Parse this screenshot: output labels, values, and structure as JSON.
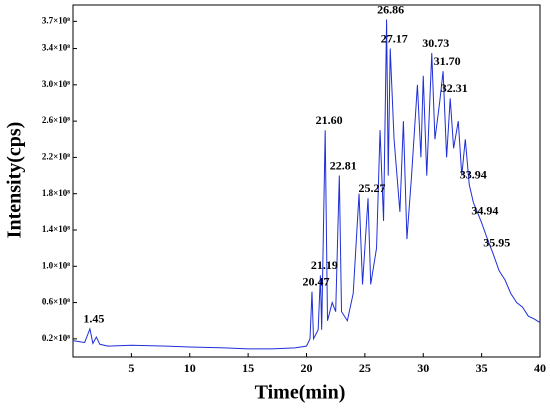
{
  "chart_data": {
    "type": "line",
    "xlabel": "Time(min)",
    "ylabel": "Intensity(cps)",
    "color": "#1f2fd6",
    "x": [
      0,
      0.5,
      1.0,
      1.45,
      1.7,
      2.0,
      2.3,
      3,
      5,
      8,
      10,
      13,
      15,
      17,
      19,
      20,
      20.3,
      20.47,
      20.6,
      21.0,
      21.19,
      21.3,
      21.6,
      21.8,
      22.2,
      22.5,
      22.81,
      23.0,
      23.5,
      24.0,
      24.5,
      24.8,
      25.27,
      25.5,
      26.0,
      26.3,
      26.6,
      26.86,
      27.0,
      27.17,
      27.5,
      28.0,
      28.3,
      28.6,
      29.0,
      29.5,
      29.8,
      30.0,
      30.3,
      30.73,
      31.0,
      31.4,
      31.7,
      32.0,
      32.31,
      32.6,
      33.0,
      33.3,
      33.6,
      33.94,
      34.3,
      34.94,
      35.5,
      35.95,
      36.5,
      37.0,
      37.5,
      38.0,
      38.5,
      39.0,
      39.5,
      40.0
    ],
    "values": [
      18000000,
      17000000,
      16000000,
      31000000,
      15000000,
      22000000,
      14000000,
      12000000,
      13000000,
      12000000,
      11000000,
      10000000,
      9000000,
      9000000,
      10000000,
      12000000,
      20000000,
      72000000,
      20000000,
      30000000,
      90000000,
      30000000,
      250000000,
      40000000,
      60000000,
      50000000,
      200000000,
      50000000,
      40000000,
      70000000,
      180000000,
      80000000,
      175000000,
      80000000,
      120000000,
      250000000,
      150000000,
      372000000,
      200000000,
      340000000,
      240000000,
      160000000,
      260000000,
      130000000,
      200000000,
      300000000,
      220000000,
      310000000,
      200000000,
      335000000,
      240000000,
      280000000,
      315000000,
      220000000,
      285000000,
      230000000,
      260000000,
      200000000,
      240000000,
      190000000,
      170000000,
      150000000,
      130000000,
      115000000,
      95000000,
      85000000,
      70000000,
      60000000,
      55000000,
      45000000,
      42000000,
      38000000
    ],
    "xlim": [
      0,
      40
    ],
    "xticks": [
      5,
      10,
      15,
      20,
      25,
      30,
      35,
      40
    ],
    "ylim": [
      0,
      388000000
    ],
    "yticks": [
      {
        "value": 20000000,
        "label": "0.2×10⁸"
      },
      {
        "value": 60000000,
        "label": "0.6×10⁸"
      },
      {
        "value": 100000000,
        "label": "1.0×10⁸"
      },
      {
        "value": 140000000,
        "label": "1.4×10⁸"
      },
      {
        "value": 180000000,
        "label": "1.8×10⁸"
      },
      {
        "value": 220000000,
        "label": "2.2×10⁸"
      },
      {
        "value": 260000000,
        "label": "2.6×10⁸"
      },
      {
        "value": 300000000,
        "label": "3.0×10⁸"
      },
      {
        "value": 340000000,
        "label": "3.4×10⁸"
      },
      {
        "value": 370000000,
        "label": "3.7×10⁸"
      }
    ],
    "annotations": [
      {
        "text": "1.45",
        "x": 1.45,
        "y": 31000000
      },
      {
        "text": "20.47",
        "x": 20.47,
        "y": 72000000
      },
      {
        "text": "21.19",
        "x": 21.19,
        "y": 90000000
      },
      {
        "text": "21.60",
        "x": 21.6,
        "y": 250000000
      },
      {
        "text": "22.81",
        "x": 22.81,
        "y": 200000000
      },
      {
        "text": "25.27",
        "x": 25.27,
        "y": 175000000
      },
      {
        "text": "26.86",
        "x": 26.86,
        "y": 372000000
      },
      {
        "text": "27.17",
        "x": 27.17,
        "y": 340000000
      },
      {
        "text": "30.73",
        "x": 30.73,
        "y": 335000000
      },
      {
        "text": "31.70",
        "x": 31.7,
        "y": 315000000
      },
      {
        "text": "32.31",
        "x": 32.31,
        "y": 285000000
      },
      {
        "text": "33.94",
        "x": 33.94,
        "y": 190000000
      },
      {
        "text": "34.94",
        "x": 34.94,
        "y": 150000000
      },
      {
        "text": "35.95",
        "x": 35.95,
        "y": 115000000
      }
    ]
  }
}
